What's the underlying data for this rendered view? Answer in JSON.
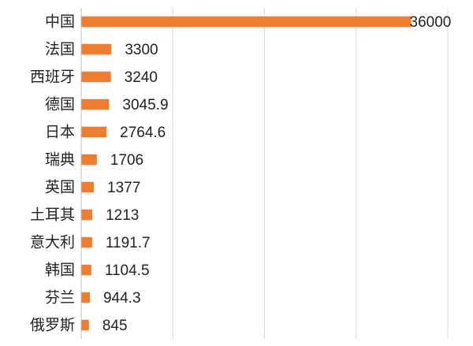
{
  "chart_data": {
    "type": "bar",
    "orientation": "horizontal",
    "categories": [
      "中国",
      "法国",
      "西班牙",
      "德国",
      "日本",
      "瑞典",
      "英国",
      "土耳其",
      "意大利",
      "韩国",
      "芬兰",
      "俄罗斯"
    ],
    "values": [
      36000,
      3300,
      3240,
      3045.9,
      2764.6,
      1706,
      1377,
      1213,
      1191.7,
      1104.5,
      944.3,
      845
    ],
    "value_labels": [
      "36000",
      "3300",
      "3240",
      "3045.9",
      "2764.6",
      "1706",
      "1377",
      "1213",
      "1191.7",
      "1104.5",
      "944.3",
      "845"
    ],
    "title": "",
    "xlabel": "",
    "ylabel": "",
    "xlim": [
      0,
      40000
    ],
    "grid": true,
    "legend": "none",
    "colors": {
      "bar": "#ED7D31",
      "grid": "#D9D9D9",
      "axis": "#BFBFBF",
      "text": "#222222"
    }
  }
}
